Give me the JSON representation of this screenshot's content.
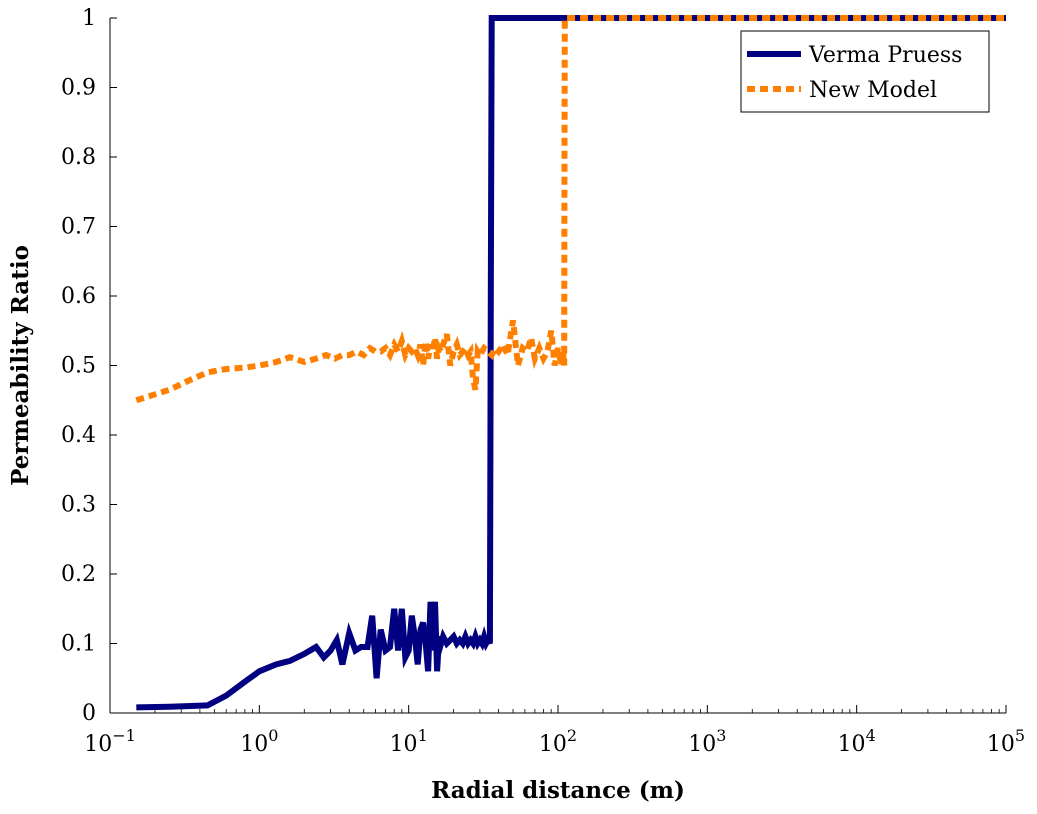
{
  "chart_data": {
    "type": "line",
    "title": "",
    "xlabel": "Radial distance (m)",
    "ylabel": "Permeability Ratio",
    "xscale": "log",
    "xlim": [
      0.1,
      100000
    ],
    "ylim": [
      0,
      1
    ],
    "grid": false,
    "legend_position": "top-right",
    "x_ticks": [
      {
        "value": 0.1,
        "base": "10",
        "exp": "−1"
      },
      {
        "value": 1,
        "base": "10",
        "exp": "0"
      },
      {
        "value": 10,
        "base": "10",
        "exp": "1"
      },
      {
        "value": 100,
        "base": "10",
        "exp": "2"
      },
      {
        "value": 1000,
        "base": "10",
        "exp": "3"
      },
      {
        "value": 10000,
        "base": "10",
        "exp": "4"
      },
      {
        "value": 100000,
        "base": "10",
        "exp": "5"
      }
    ],
    "y_ticks": [
      {
        "value": 0,
        "label": "0"
      },
      {
        "value": 0.1,
        "label": "0.1"
      },
      {
        "value": 0.2,
        "label": "0.2"
      },
      {
        "value": 0.3,
        "label": "0.3"
      },
      {
        "value": 0.4,
        "label": "0.4"
      },
      {
        "value": 0.5,
        "label": "0.5"
      },
      {
        "value": 0.6,
        "label": "0.6"
      },
      {
        "value": 0.7,
        "label": "0.7"
      },
      {
        "value": 0.8,
        "label": "0.8"
      },
      {
        "value": 0.9,
        "label": "0.9"
      },
      {
        "value": 1,
        "label": "1"
      }
    ],
    "series": [
      {
        "name": "Verma Pruess",
        "color": "#000080",
        "style": "solid",
        "x": [
          0.15,
          0.25,
          0.35,
          0.45,
          0.6,
          0.8,
          1.0,
          1.3,
          1.6,
          2.0,
          2.4,
          2.7,
          3.0,
          3.3,
          3.6,
          4.0,
          4.4,
          4.8,
          5.3,
          5.7,
          6.1,
          6.5,
          7.0,
          7.5,
          8.0,
          8.5,
          9.0,
          9.5,
          10.0,
          10.5,
          11.0,
          11.5,
          12.0,
          12.5,
          13.0,
          13.5,
          14.0,
          14.5,
          15.0,
          15.5,
          16.0,
          16.5,
          17.0,
          18.0,
          19.0,
          20.0,
          21.0,
          22.0,
          23.0,
          24.0,
          25.0,
          26.0,
          27.0,
          28.0,
          29.0,
          30.0,
          31.0,
          32.0,
          33.0,
          34.0,
          35.0,
          35.5,
          36.0,
          40.0,
          60.0,
          100.0,
          1000.0,
          10000.0,
          100000.0
        ],
        "y": [
          0.008,
          0.009,
          0.01,
          0.011,
          0.025,
          0.045,
          0.06,
          0.07,
          0.075,
          0.085,
          0.095,
          0.08,
          0.09,
          0.105,
          0.07,
          0.115,
          0.09,
          0.095,
          0.095,
          0.14,
          0.05,
          0.12,
          0.09,
          0.095,
          0.15,
          0.09,
          0.15,
          0.08,
          0.09,
          0.14,
          0.11,
          0.07,
          0.12,
          0.13,
          0.1,
          0.06,
          0.16,
          0.09,
          0.16,
          0.06,
          0.11,
          0.1,
          0.11,
          0.1,
          0.105,
          0.11,
          0.1,
          0.105,
          0.1,
          0.11,
          0.1,
          0.105,
          0.1,
          0.11,
          0.1,
          0.105,
          0.1,
          0.11,
          0.1,
          0.105,
          0.1,
          0.6,
          1.0,
          1.0,
          1.0,
          1.0,
          1.0,
          1.0,
          1.0
        ]
      },
      {
        "name": "New Model",
        "color": "#ff8000",
        "style": "dashed",
        "x": [
          0.15,
          0.25,
          0.35,
          0.45,
          0.6,
          0.8,
          1.0,
          1.3,
          1.6,
          2.0,
          2.4,
          2.8,
          3.2,
          3.6,
          4.0,
          4.5,
          5.0,
          5.5,
          6.0,
          6.5,
          7.0,
          7.5,
          8.0,
          8.5,
          9.0,
          9.5,
          10.0,
          10.5,
          11.0,
          11.5,
          12.0,
          12.5,
          13.0,
          13.5,
          14.0,
          14.5,
          15.0,
          15.5,
          16.0,
          16.5,
          17.0,
          18.0,
          19.0,
          20.0,
          21.0,
          22.0,
          23.0,
          24.0,
          25.0,
          26.0,
          27.0,
          28.0,
          29.0,
          30.0,
          32.0,
          34.0,
          36.0,
          38.0,
          40.0,
          43.0,
          46.0,
          50.0,
          54.0,
          58.0,
          62.0,
          66.0,
          70.0,
          75.0,
          80.0,
          85.0,
          90.0,
          95.0,
          100.0,
          105.0,
          108.0,
          110.0,
          110.5,
          111.0,
          112.0,
          200.0,
          1000.0,
          10000.0,
          100000.0
        ],
        "y": [
          0.45,
          0.465,
          0.48,
          0.49,
          0.495,
          0.497,
          0.5,
          0.505,
          0.512,
          0.505,
          0.51,
          0.515,
          0.51,
          0.515,
          0.515,
          0.52,
          0.515,
          0.525,
          0.52,
          0.52,
          0.525,
          0.515,
          0.53,
          0.52,
          0.535,
          0.515,
          0.525,
          0.52,
          0.525,
          0.515,
          0.53,
          0.5,
          0.535,
          0.51,
          0.53,
          0.52,
          0.54,
          0.51,
          0.525,
          0.52,
          0.53,
          0.545,
          0.5,
          0.52,
          0.53,
          0.515,
          0.52,
          0.525,
          0.515,
          0.52,
          0.48,
          0.465,
          0.52,
          0.515,
          0.525,
          0.52,
          0.515,
          0.525,
          0.52,
          0.53,
          0.515,
          0.565,
          0.5,
          0.525,
          0.52,
          0.54,
          0.51,
          0.525,
          0.51,
          0.52,
          0.55,
          0.5,
          0.525,
          0.5,
          0.52,
          0.5,
          0.8,
          1.0,
          1.0,
          1.0,
          1.0,
          1.0,
          1.0
        ]
      }
    ]
  }
}
